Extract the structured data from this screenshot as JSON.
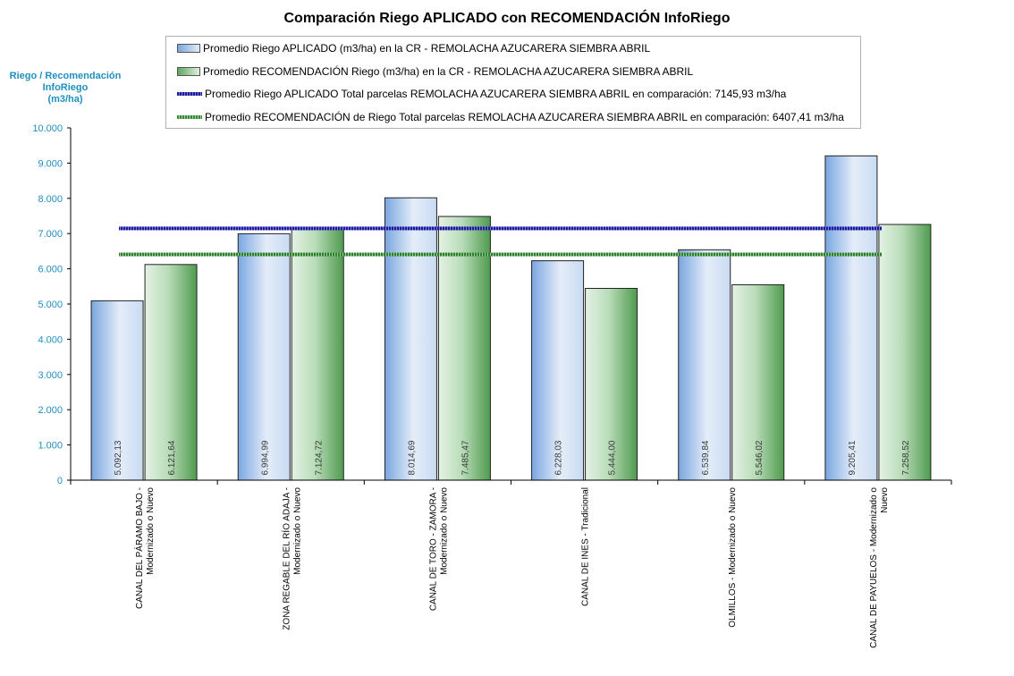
{
  "chart_data": {
    "type": "bar",
    "title": "Comparación Riego APLICADO con RECOMENDACIÓN InfoRiego",
    "ylabel": [
      "Riego / Recomendación",
      "InfoRiego",
      "(m3/ha)"
    ],
    "ylim": [
      0,
      10000
    ],
    "yticks": [
      0,
      1000,
      2000,
      3000,
      4000,
      5000,
      6000,
      7000,
      8000,
      9000,
      10000
    ],
    "ytick_labels": [
      "0",
      "1.000",
      "2.000",
      "3.000",
      "4.000",
      "5.000",
      "6.000",
      "7.000",
      "8.000",
      "9.000",
      "10.000"
    ],
    "categories": [
      [
        "CANAL DEL PÁRAMO BAJO -",
        "Modernizado o Nuevo"
      ],
      [
        "ZONA REGABLE DEL RÍO ADAJA -",
        "Modernizado o Nuevo"
      ],
      [
        "CANAL DE TORO - ZAMORA -",
        "Modernizado o Nuevo"
      ],
      [
        "CANAL DE INES - Tradicional"
      ],
      [
        "OLMILLOS - Modernizado o Nuevo"
      ],
      [
        "CANAL DE PAYUELOS - Modernizado o",
        "Nuevo"
      ]
    ],
    "series": [
      {
        "name": "Promedio Riego APLICADO (m3/ha) en la CR - REMOLACHA AZUCARERA SIEMBRA ABRIL",
        "values": [
          5092.13,
          6994.99,
          8014.69,
          6228.03,
          6539.84,
          9205.41
        ],
        "labels": [
          "5.092,13",
          "6.994,99",
          "8.014,69",
          "6.228,03",
          "6.539,84",
          "9.205,41"
        ],
        "color": "#7aa6e0"
      },
      {
        "name": "Promedio RECOMENDACIÓN Riego (m3/ha) en la CR - REMOLACHA AZUCARERA SIEMBRA ABRIL",
        "values": [
          6121.64,
          7124.72,
          7485.47,
          5444.0,
          5546.02,
          7258.52
        ],
        "labels": [
          "6.121,64",
          "7.124,72",
          "7.485,47",
          "5.444,00",
          "5.546,02",
          "7.258,52"
        ],
        "color": "#5ea85e"
      }
    ],
    "reference_lines": [
      {
        "name": "Promedio Riego APLICADO Total parcelas REMOLACHA AZUCARERA SIEMBRA ABRIL en comparación: 7145,93 m3/ha",
        "value": 7145.93,
        "color": "#1a1a9a"
      },
      {
        "name": "Promedio RECOMENDACIÓN de Riego Total parcelas REMOLACHA AZUCARERA SIEMBRA ABRIL en comparación: 6407,41 m3/ha",
        "value": 6407.41,
        "color": "#3a8a3a"
      }
    ],
    "grid": false,
    "legend_position": "top"
  }
}
